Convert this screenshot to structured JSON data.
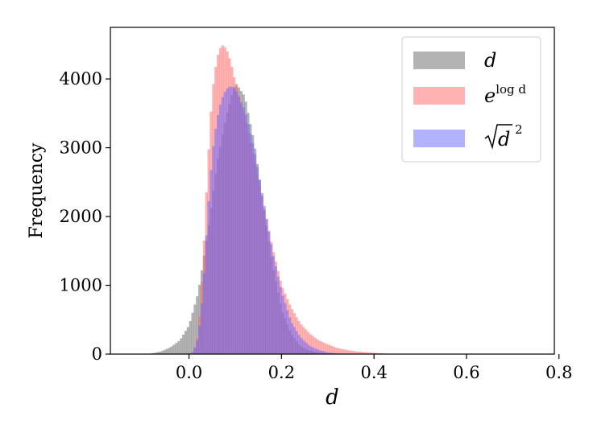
{
  "chart_data": {
    "type": "bar",
    "subtype": "overlaid-histogram",
    "title": "",
    "xlabel": "d",
    "ylabel": "Frequency",
    "xlim": [
      -0.17,
      0.79
    ],
    "ylim": [
      0,
      4750
    ],
    "xticks": [
      0.0,
      0.2,
      0.4,
      0.6,
      0.8
    ],
    "xtick_labels": [
      "0.0",
      "0.2",
      "0.4",
      "0.6",
      "0.8"
    ],
    "yticks": [
      0,
      1000,
      2000,
      3000,
      4000
    ],
    "ytick_labels": [
      "0",
      "1000",
      "2000",
      "3000",
      "4000"
    ],
    "grid": false,
    "legend_position": "top-right",
    "series": [
      {
        "name_parts": {
          "base": "d",
          "sup": ""
        },
        "color": "#808080",
        "opacity": 0.6,
        "points": [
          [
            -0.1,
            0
          ],
          [
            -0.08,
            10
          ],
          [
            -0.06,
            40
          ],
          [
            -0.04,
            100
          ],
          [
            -0.02,
            200
          ],
          [
            0.0,
            420
          ],
          [
            0.02,
            900
          ],
          [
            0.04,
            1750
          ],
          [
            0.06,
            2750
          ],
          [
            0.08,
            3450
          ],
          [
            0.1,
            3950
          ],
          [
            0.12,
            3750
          ],
          [
            0.14,
            3100
          ],
          [
            0.16,
            2200
          ],
          [
            0.18,
            1300
          ],
          [
            0.2,
            650
          ],
          [
            0.22,
            300
          ],
          [
            0.24,
            120
          ],
          [
            0.26,
            50
          ],
          [
            0.28,
            20
          ],
          [
            0.3,
            8
          ],
          [
            0.32,
            0
          ]
        ]
      },
      {
        "name_parts": {
          "base": "e",
          "sup": "log d"
        },
        "color": "#ff6666",
        "opacity": 0.5,
        "points": [
          [
            0.0,
            0
          ],
          [
            0.01,
            30
          ],
          [
            0.02,
            300
          ],
          [
            0.03,
            1300
          ],
          [
            0.04,
            2700
          ],
          [
            0.05,
            3800
          ],
          [
            0.06,
            4300
          ],
          [
            0.07,
            4500
          ],
          [
            0.08,
            4450
          ],
          [
            0.09,
            4250
          ],
          [
            0.1,
            3950
          ],
          [
            0.12,
            3450
          ],
          [
            0.14,
            2850
          ],
          [
            0.16,
            2200
          ],
          [
            0.18,
            1550
          ],
          [
            0.2,
            1000
          ],
          [
            0.22,
            680
          ],
          [
            0.24,
            450
          ],
          [
            0.26,
            300
          ],
          [
            0.28,
            200
          ],
          [
            0.3,
            140
          ],
          [
            0.32,
            90
          ],
          [
            0.34,
            60
          ],
          [
            0.36,
            40
          ],
          [
            0.38,
            28
          ],
          [
            0.4,
            18
          ],
          [
            0.42,
            10
          ],
          [
            0.44,
            0
          ]
        ]
      },
      {
        "name_parts": {
          "base": "d",
          "sup": "2"
        },
        "color": "#6666ff",
        "opacity": 0.5,
        "points": [
          [
            0.0,
            0
          ],
          [
            0.01,
            40
          ],
          [
            0.02,
            250
          ],
          [
            0.03,
            900
          ],
          [
            0.04,
            2000
          ],
          [
            0.05,
            2900
          ],
          [
            0.06,
            3400
          ],
          [
            0.07,
            3700
          ],
          [
            0.08,
            3850
          ],
          [
            0.09,
            3900
          ],
          [
            0.1,
            3850
          ],
          [
            0.12,
            3550
          ],
          [
            0.14,
            3000
          ],
          [
            0.16,
            2250
          ],
          [
            0.18,
            1500
          ],
          [
            0.2,
            900
          ],
          [
            0.22,
            480
          ],
          [
            0.24,
            250
          ],
          [
            0.26,
            120
          ],
          [
            0.28,
            60
          ],
          [
            0.3,
            25
          ],
          [
            0.32,
            10
          ],
          [
            0.34,
            0
          ]
        ]
      }
    ]
  }
}
